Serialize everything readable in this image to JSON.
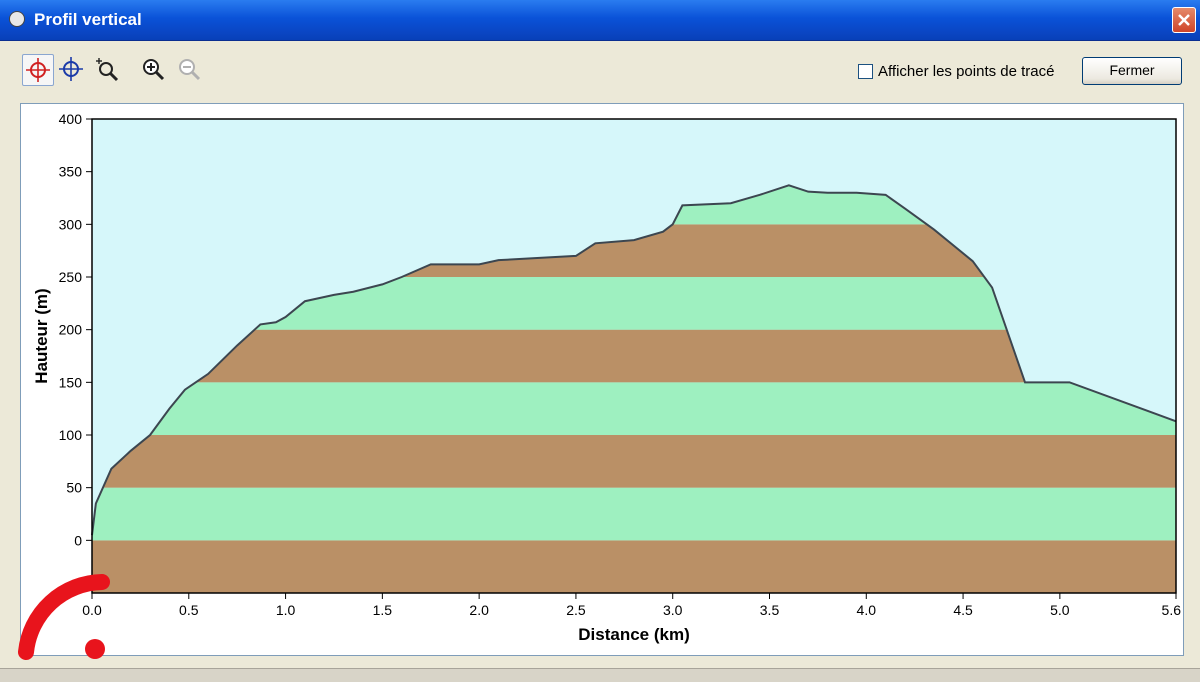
{
  "window": {
    "title": "Profil vertical",
    "close_icon": "close-icon"
  },
  "toolbar": {
    "tools": [
      {
        "name": "crosshair-red-icon",
        "active": true
      },
      {
        "name": "crosshair-blue-icon",
        "active": false
      },
      {
        "name": "zoom-extent-icon",
        "active": false
      },
      {
        "name": "zoom-in-icon",
        "active": false
      },
      {
        "name": "zoom-out-icon",
        "active": false,
        "disabled": true
      }
    ],
    "checkbox_label": "Afficher les points de tracé",
    "checkbox_checked": false,
    "close_button_label": "Fermer"
  },
  "colors": {
    "sky": "#d6f7fa",
    "band_green": "#9ef0c0",
    "band_brown": "#ba9066",
    "outline": "#3c4650"
  },
  "chart_data": {
    "type": "area",
    "title": "",
    "xlabel": "Distance   (km)",
    "ylabel": "Hauteur (m)",
    "xlim": [
      0,
      5.6
    ],
    "ylim": [
      -50,
      400
    ],
    "x_ticks": [
      "0.0",
      "0.5",
      "1.0",
      "1.5",
      "2.0",
      "2.5",
      "3.0",
      "3.5",
      "4.0",
      "4.5",
      "5.0",
      "5.6"
    ],
    "x_tick_values": [
      0,
      0.5,
      1.0,
      1.5,
      2.0,
      2.5,
      3.0,
      3.5,
      4.0,
      4.5,
      5.0,
      5.6
    ],
    "y_ticks": [
      "400",
      "350",
      "300",
      "250",
      "200",
      "150",
      "100",
      "50",
      "0"
    ],
    "y_tick_values": [
      400,
      350,
      300,
      250,
      200,
      150,
      100,
      50,
      0
    ],
    "band_step": 50,
    "band_colors": [
      "brown",
      "green"
    ],
    "x": [
      0.0,
      0.02,
      0.1,
      0.2,
      0.3,
      0.4,
      0.48,
      0.6,
      0.75,
      0.87,
      0.95,
      1.0,
      1.1,
      1.25,
      1.35,
      1.5,
      1.6,
      1.75,
      2.0,
      2.1,
      2.3,
      2.5,
      2.6,
      2.8,
      2.95,
      3.0,
      3.05,
      3.3,
      3.45,
      3.6,
      3.7,
      3.8,
      3.95,
      4.1,
      4.2,
      4.35,
      4.45,
      4.55,
      4.65,
      4.82,
      5.05,
      5.6
    ],
    "y": [
      5,
      35,
      68,
      85,
      100,
      125,
      143,
      158,
      185,
      205,
      207,
      212,
      227,
      233,
      236,
      243,
      250,
      262,
      262,
      266,
      268,
      270,
      282,
      285,
      293,
      300,
      318,
      320,
      328,
      337,
      331,
      330,
      330,
      328,
      315,
      295,
      280,
      265,
      240,
      150,
      150,
      113
    ]
  },
  "watermark": {
    "text": ""
  }
}
